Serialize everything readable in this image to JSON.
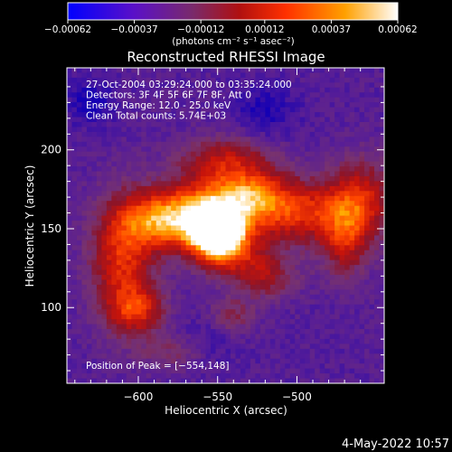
{
  "chart_data": {
    "type": "heatmap",
    "title": "Reconstructed RHESSI Image",
    "xlabel": "Heliocentric X (arcsec)",
    "ylabel": "Heliocentric Y (arcsec)",
    "xlim": [
      -645,
      -445
    ],
    "ylim": [
      52,
      252
    ],
    "x_ticks": [
      -600,
      -550,
      -500
    ],
    "x_tick_labels": [
      "−600",
      "−550",
      "−500"
    ],
    "y_ticks": [
      100,
      150,
      200
    ],
    "y_tick_labels": [
      "100",
      "150",
      "200"
    ],
    "annotations": [
      "27-Oct-2004 03:29:24.000 to 03:35:24.000",
      "Detectors: 3F 4F 5F 6F 7F 8F, Att 0",
      "Energy Range: 12.0 - 25.0 keV",
      "Clean     Total counts: 5.74E+03"
    ],
    "peak_label": "Position of Peak = [−554,148]",
    "peak_position": [
      -554,
      148
    ],
    "colorbar": {
      "ticks": [
        -0.00062,
        -0.00037,
        -0.00012,
        0.00012,
        0.00037,
        0.00062
      ],
      "tick_labels": [
        "−0.00062",
        "−0.00037",
        "−0.00012",
        "0.00012",
        "0.00037",
        "0.00062"
      ],
      "range": [
        -0.00062,
        0.00062
      ],
      "units_label": "(photons cm⁻² s⁻¹ asec⁻²)",
      "colors": [
        "#0000ff",
        "#6a1ab0",
        "#7a2a6a",
        "#c01010",
        "#ff3000",
        "#ffa000",
        "#ffffff"
      ]
    },
    "grid": false,
    "blobs": [
      {
        "x": -551,
        "y": 149,
        "sx": 10,
        "sy": 9,
        "a": 1.0
      },
      {
        "x": -555,
        "y": 160,
        "sx": 24,
        "sy": 16,
        "a": 0.55
      },
      {
        "x": -585,
        "y": 155,
        "sx": 18,
        "sy": 12,
        "a": 0.45
      },
      {
        "x": -610,
        "y": 130,
        "sx": 14,
        "sy": 28,
        "a": 0.45
      },
      {
        "x": -600,
        "y": 98,
        "sx": 12,
        "sy": 10,
        "a": 0.35
      },
      {
        "x": -530,
        "y": 172,
        "sx": 18,
        "sy": 12,
        "a": 0.4
      },
      {
        "x": -495,
        "y": 160,
        "sx": 22,
        "sy": 14,
        "a": 0.42
      },
      {
        "x": -460,
        "y": 168,
        "sx": 14,
        "sy": 18,
        "a": 0.4
      },
      {
        "x": -545,
        "y": 135,
        "sx": 14,
        "sy": 10,
        "a": 0.4
      },
      {
        "x": -520,
        "y": 120,
        "sx": 14,
        "sy": 10,
        "a": 0.3
      },
      {
        "x": -470,
        "y": 140,
        "sx": 10,
        "sy": 16,
        "a": 0.3
      },
      {
        "x": -545,
        "y": 195,
        "sx": 20,
        "sy": 10,
        "a": 0.3
      },
      {
        "x": -575,
        "y": 72,
        "sx": 16,
        "sy": 8,
        "a": 0.2
      },
      {
        "x": -540,
        "y": 95,
        "sx": 10,
        "sy": 8,
        "a": 0.2
      },
      {
        "x": -630,
        "y": 230,
        "sx": 10,
        "sy": 10,
        "a": -0.18
      },
      {
        "x": -520,
        "y": 225,
        "sx": 14,
        "sy": 12,
        "a": -0.15
      },
      {
        "x": -560,
        "y": 75,
        "sx": 14,
        "sy": 10,
        "a": -0.12
      }
    ]
  },
  "footer": {
    "date": "4-May-2022 10:57"
  }
}
